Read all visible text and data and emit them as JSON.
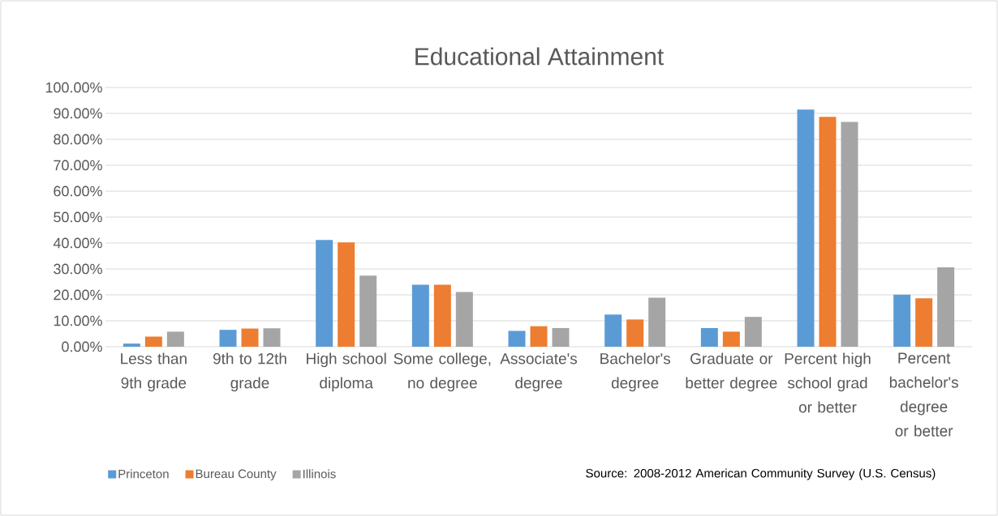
{
  "chart_data": {
    "type": "bar",
    "title": "Educational Attainment",
    "categories": [
      "Less than 9th grade",
      "9th to 12th grade",
      "High school diploma",
      "Some college, no degree",
      "Associate's degree",
      "Bachelor's degree",
      "Graduate or better degree",
      "Percent high school grad or better",
      "Percent bachelor's degree or better"
    ],
    "series": [
      {
        "name": "Princeton",
        "color": "#5b9bd5",
        "values": [
          1.2,
          6.5,
          41.2,
          23.9,
          6.1,
          12.4,
          7.2,
          91.5,
          20.1
        ]
      },
      {
        "name": "Bureau County",
        "color": "#ed7d31",
        "values": [
          3.9,
          7.0,
          40.2,
          23.9,
          7.9,
          10.5,
          5.8,
          88.7,
          18.7
        ]
      },
      {
        "name": "Illinois",
        "color": "#a5a5a5",
        "values": [
          5.8,
          7.1,
          27.4,
          21.1,
          7.2,
          18.9,
          11.5,
          86.7,
          30.6
        ]
      }
    ],
    "ylim": [
      0,
      100
    ],
    "yticks": [
      {
        "value": 0,
        "label": "0.00%"
      },
      {
        "value": 10,
        "label": "10.00%"
      },
      {
        "value": 20,
        "label": "20.00%"
      },
      {
        "value": 30,
        "label": "30.00%"
      },
      {
        "value": 40,
        "label": "40.00%"
      },
      {
        "value": 50,
        "label": "50.00%"
      },
      {
        "value": 60,
        "label": "60.00%"
      },
      {
        "value": 70,
        "label": "70.00%"
      },
      {
        "value": 80,
        "label": "80.00%"
      },
      {
        "value": 90,
        "label": "90.00%"
      },
      {
        "value": 100,
        "label": "100.00%"
      }
    ],
    "grid": "y",
    "legend": "bottom left",
    "annotations": [
      "Source: 2008-2012 American Community Survey (U.S. Census)"
    ]
  }
}
